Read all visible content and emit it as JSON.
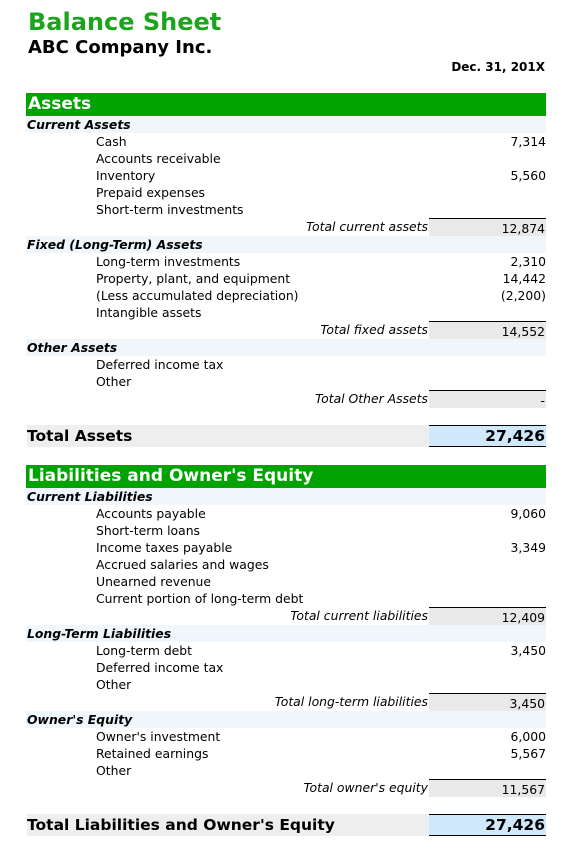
{
  "header": {
    "title": "Balance Sheet",
    "company": "ABC Company Inc.",
    "date": "Dec. 31, 201X"
  },
  "assets": {
    "heading": "Assets",
    "current": {
      "label": "Current Assets",
      "items": [
        {
          "label": "Cash",
          "value": "7,314"
        },
        {
          "label": "Accounts receivable",
          "value": ""
        },
        {
          "label": "Inventory",
          "value": "5,560"
        },
        {
          "label": "Prepaid expenses",
          "value": ""
        },
        {
          "label": "Short-term investments",
          "value": ""
        }
      ],
      "total_label": "Total current assets",
      "total_value": "12,874"
    },
    "fixed": {
      "label": "Fixed (Long-Term) Assets",
      "items": [
        {
          "label": "Long-term investments",
          "value": "2,310"
        },
        {
          "label": "Property, plant, and equipment",
          "value": "14,442"
        },
        {
          "label": "(Less accumulated depreciation)",
          "value": "(2,200)"
        },
        {
          "label": "Intangible assets",
          "value": ""
        }
      ],
      "total_label": "Total fixed assets",
      "total_value": "14,552"
    },
    "other": {
      "label": "Other Assets",
      "items": [
        {
          "label": "Deferred income tax",
          "value": ""
        },
        {
          "label": "Other",
          "value": ""
        }
      ],
      "total_label": "Total Other Assets",
      "total_value": "-"
    },
    "total_label": "Total Assets",
    "total_value": "27,426"
  },
  "liabilities": {
    "heading": "Liabilities and Owner's Equity",
    "current": {
      "label": "Current Liabilities",
      "items": [
        {
          "label": "Accounts payable",
          "value": "9,060"
        },
        {
          "label": "Short-term loans",
          "value": ""
        },
        {
          "label": "Income taxes payable",
          "value": "3,349"
        },
        {
          "label": "Accrued salaries and wages",
          "value": ""
        },
        {
          "label": "Unearned revenue",
          "value": ""
        },
        {
          "label": "Current portion of long-term debt",
          "value": ""
        }
      ],
      "total_label": "Total current liabilities",
      "total_value": "12,409"
    },
    "longterm": {
      "label": "Long-Term Liabilities",
      "items": [
        {
          "label": "Long-term debt",
          "value": "3,450"
        },
        {
          "label": "Deferred income tax",
          "value": ""
        },
        {
          "label": "Other",
          "value": ""
        }
      ],
      "total_label": "Total long-term liabilities",
      "total_value": "3,450"
    },
    "equity": {
      "label": "Owner's Equity",
      "items": [
        {
          "label": "Owner's investment",
          "value": "6,000"
        },
        {
          "label": "Retained earnings",
          "value": "5,567"
        },
        {
          "label": "Other",
          "value": ""
        }
      ],
      "total_label": "Total owner's equity",
      "total_value": "11,567"
    },
    "total_label": "Total Liabilities and Owner's Equity",
    "total_value": "27,426"
  }
}
